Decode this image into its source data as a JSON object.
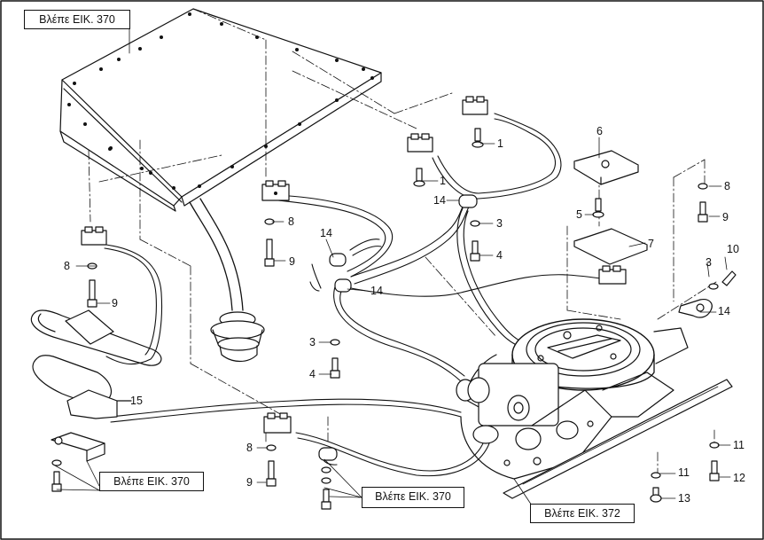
{
  "references": {
    "top_left": "Βλέπε ΕΙΚ. 370",
    "bottom_left": "Βλέπε ΕΙΚ. 370",
    "bottom_center": "Βλέπε ΕΙΚ. 370",
    "bottom_right": "Βλέπε ΕΙΚ. 372"
  },
  "callouts": {
    "c1a": "1",
    "c1b": "1",
    "c3a": "3",
    "c3b": "3",
    "c3c": "3",
    "c4a": "4",
    "c4b": "4",
    "c5": "5",
    "c6": "6",
    "c7": "7",
    "c8a": "8",
    "c8b": "8",
    "c8c": "8",
    "c8d": "8",
    "c9a": "9",
    "c9b": "9",
    "c9c": "9",
    "c9d": "9",
    "c10": "10",
    "c11a": "11",
    "c11b": "11",
    "c12": "12",
    "c13": "13",
    "c14a": "14",
    "c14b": "14",
    "c14c": "14",
    "c14d": "14",
    "c15": "15"
  }
}
